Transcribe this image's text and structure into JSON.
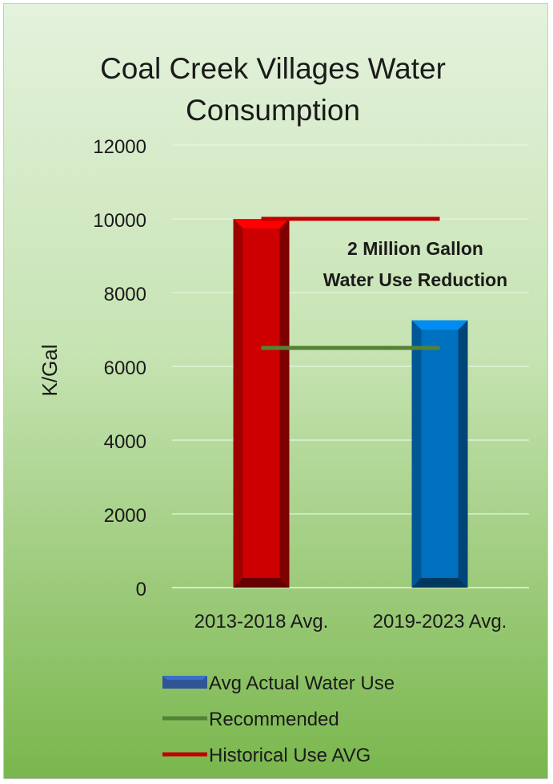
{
  "chart_data": {
    "type": "bar",
    "title_lines": [
      "Coal Creek Villages Water",
      "Consumption"
    ],
    "ylabel": "K/Gal",
    "ylim": [
      0,
      12000
    ],
    "yticks": [
      0,
      2000,
      4000,
      6000,
      8000,
      10000,
      12000
    ],
    "grid": true,
    "categories": [
      "2013-2018 Avg.",
      "2019-2023 Avg."
    ],
    "series": [
      {
        "name": "Avg Actual Water Use",
        "type": "bar",
        "values": [
          10000,
          7250
        ],
        "point_colors": [
          "#cc0000",
          "#0070c0"
        ],
        "legend_color": "#2f5597"
      },
      {
        "name": "Recommended",
        "type": "line",
        "values": [
          6500,
          6500
        ],
        "color": "#548235"
      },
      {
        "name": "Historical Use AVG",
        "type": "line",
        "values": [
          10000,
          10000
        ],
        "color": "#c00000"
      }
    ],
    "annotation_lines": [
      "2 Million Gallon",
      "Water Use Reduction"
    ],
    "legend_position": "bottom"
  }
}
